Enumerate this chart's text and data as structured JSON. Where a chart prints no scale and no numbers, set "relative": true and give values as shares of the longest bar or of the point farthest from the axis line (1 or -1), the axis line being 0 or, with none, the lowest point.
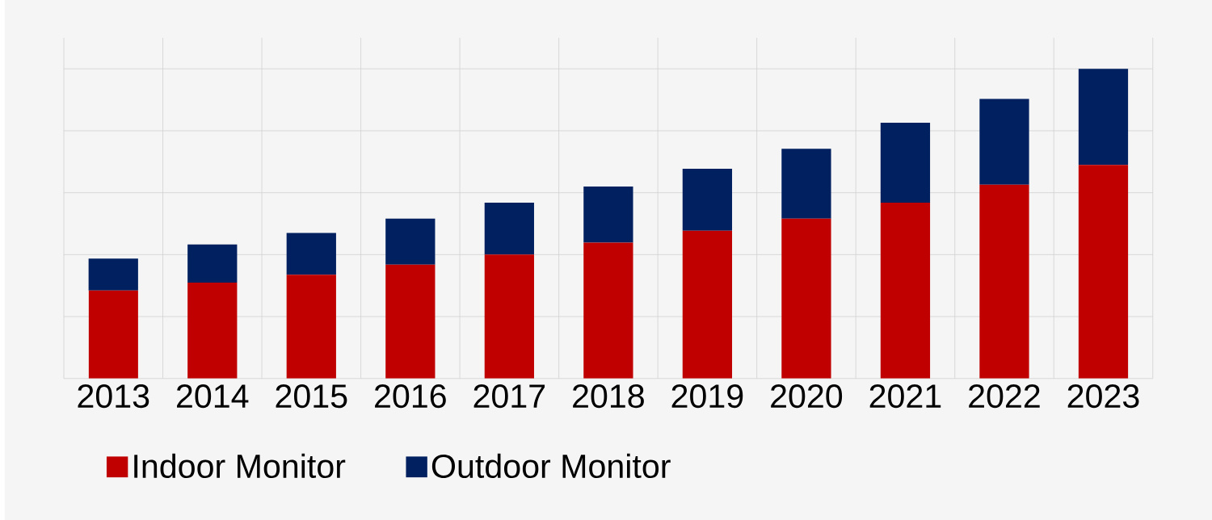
{
  "chart_data": {
    "type": "bar",
    "stacked": true,
    "relative": true,
    "grid": true,
    "legend": "bottom",
    "categories": [
      "2013",
      "2014",
      "2015",
      "2016",
      "2017",
      "2018",
      "2019",
      "2020",
      "2021",
      "2022",
      "2023"
    ],
    "series": [
      {
        "name": "Indoor Monitor",
        "color": "#c00000",
        "values": [
          0.284,
          0.31,
          0.335,
          0.368,
          0.4,
          0.439,
          0.477,
          0.516,
          0.568,
          0.626,
          0.69
        ]
      },
      {
        "name": "Outdoor Monitor",
        "color": "#002060",
        "values": [
          0.103,
          0.123,
          0.135,
          0.148,
          0.168,
          0.181,
          0.2,
          0.226,
          0.258,
          0.277,
          0.31
        ]
      }
    ]
  }
}
